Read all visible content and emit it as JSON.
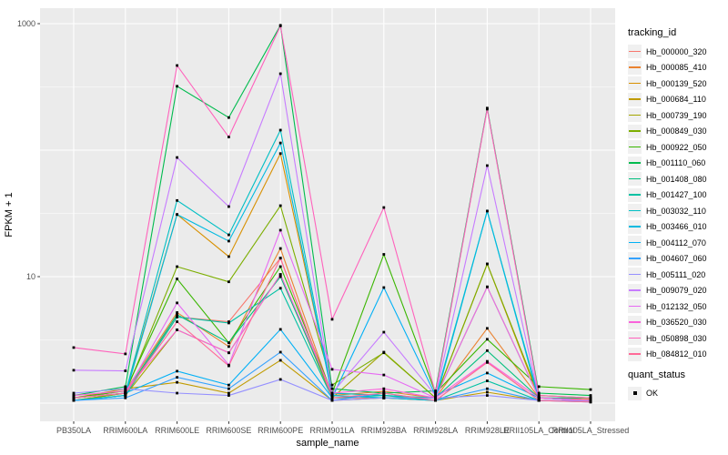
{
  "chart_data": {
    "type": "line",
    "title": "",
    "xlabel": "sample_name",
    "ylabel": "FPKM + 1",
    "y_scale": "log10",
    "grid": true,
    "legend_position": "right",
    "panel_background": "#EBEBEB",
    "gridline_color": "#FFFFFF",
    "point_shape": "filled-square",
    "point_color": "#000000",
    "axis_text_color": "#4D4D4D",
    "tick_color": "#333333",
    "ylim": [
      0.72,
      1400
    ],
    "y_tick_labels": [
      {
        "value": 1000,
        "label": "1000"
      },
      {
        "value": 10,
        "label": "10"
      }
    ],
    "y_major_gridlines": [
      1,
      10,
      100,
      1000
    ],
    "y_minor_gridlines": [
      3.162,
      31.62,
      316.2
    ],
    "categories": [
      "PB350LA",
      "RRIM600LA",
      "RRIM600LE",
      "RRIM600SE",
      "RRIM600PE",
      "RRIM901LA",
      "RRIM928BA",
      "RRIM928LA",
      "RRIM928LE",
      "RRII105LA_Control",
      "RRII105LA_Stressed"
    ],
    "legend": {
      "tracking_title": "tracking_id",
      "quant_title": "quant_status",
      "quant_status_label": "OK"
    },
    "series": [
      {
        "name": "Hb_000000_320",
        "color": "#F8766D",
        "values": [
          1.1,
          1.2,
          4.8,
          4.4,
          14.0,
          1.1,
          1.1,
          1.05,
          2.1,
          1.05,
          1.05
        ]
      },
      {
        "name": "Hb_000085_410",
        "color": "#EA8331",
        "values": [
          1.1,
          1.25,
          5.2,
          2.8,
          16.7,
          1.15,
          1.24,
          1.1,
          3.9,
          1.1,
          1.08
        ]
      },
      {
        "name": "Hb_000139_520",
        "color": "#D89000",
        "values": [
          1.05,
          1.2,
          31.0,
          14.4,
          94.0,
          1.2,
          1.15,
          1.1,
          12.6,
          1.1,
          1.05
        ]
      },
      {
        "name": "Hb_000684_110",
        "color": "#C09B00",
        "values": [
          1.1,
          1.3,
          1.46,
          1.2,
          2.18,
          1.05,
          1.1,
          1.05,
          1.22,
          1.05,
          1.05
        ]
      },
      {
        "name": "Hb_000739_190",
        "color": "#A3A500",
        "values": [
          1.05,
          1.15,
          3.8,
          2.5,
          10.4,
          1.1,
          2.53,
          1.1,
          8.3,
          1.1,
          1.05
        ]
      },
      {
        "name": "Hb_000849_030",
        "color": "#7CAE00",
        "values": [
          1.05,
          1.2,
          12.0,
          9.1,
          36.4,
          1.39,
          2.5,
          1.1,
          12.6,
          1.15,
          1.1
        ]
      },
      {
        "name": "Hb_000922_050",
        "color": "#39B600",
        "values": [
          1.1,
          1.25,
          9.6,
          3.0,
          12.0,
          1.2,
          15.0,
          1.2,
          3.2,
          1.35,
          1.28
        ]
      },
      {
        "name": "Hb_001110_060",
        "color": "#00BB4E",
        "values": [
          1.15,
          1.35,
          320,
          181,
          970,
          1.3,
          1.2,
          1.25,
          215,
          1.2,
          1.15
        ]
      },
      {
        "name": "Hb_001408_080",
        "color": "#00BF7D",
        "values": [
          1.1,
          1.2,
          5.0,
          3.0,
          10.0,
          1.15,
          1.1,
          1.1,
          2.6,
          1.1,
          1.1
        ]
      },
      {
        "name": "Hb_001427_100",
        "color": "#00C1A3",
        "values": [
          1.05,
          1.15,
          4.8,
          4.3,
          8.1,
          1.1,
          1.15,
          1.05,
          1.5,
          1.05,
          1.05
        ]
      },
      {
        "name": "Hb_003032_110",
        "color": "#00BFC4",
        "values": [
          1.1,
          1.2,
          40.0,
          21.4,
          144,
          1.2,
          1.15,
          1.1,
          33.0,
          1.1,
          1.05
        ]
      },
      {
        "name": "Hb_003466_010",
        "color": "#00BAE0",
        "values": [
          1.05,
          1.15,
          31.0,
          19.1,
          114,
          1.15,
          1.1,
          1.05,
          33.0,
          1.05,
          1.05
        ]
      },
      {
        "name": "Hb_004112_070",
        "color": "#00B0F6",
        "values": [
          1.1,
          1.2,
          1.79,
          1.39,
          3.83,
          1.1,
          8.2,
          1.15,
          1.73,
          1.1,
          1.05
        ]
      },
      {
        "name": "Hb_004607_060",
        "color": "#35A2FF",
        "values": [
          1.05,
          1.1,
          1.6,
          1.3,
          2.53,
          1.05,
          1.2,
          1.05,
          1.3,
          1.05,
          1.02
        ]
      },
      {
        "name": "Hb_005111_020",
        "color": "#9590FF",
        "values": [
          1.2,
          1.3,
          1.2,
          1.15,
          1.54,
          1.05,
          1.1,
          1.1,
          1.15,
          1.05,
          1.05
        ]
      },
      {
        "name": "Hb_009079_020",
        "color": "#C77CFF",
        "values": [
          1.82,
          1.8,
          87.5,
          35.8,
          402,
          1.2,
          3.64,
          1.15,
          75.5,
          1.1,
          1.05
        ]
      },
      {
        "name": "Hb_012132_050",
        "color": "#E76BF3",
        "values": [
          1.1,
          1.2,
          6.2,
          2.0,
          23.3,
          1.85,
          1.67,
          1.1,
          8.3,
          1.1,
          1.05
        ]
      },
      {
        "name": "Hb_036520_030",
        "color": "#FA62DB",
        "values": [
          1.15,
          1.25,
          3.8,
          2.5,
          10.4,
          1.2,
          1.3,
          1.1,
          2.14,
          1.1,
          1.05
        ]
      },
      {
        "name": "Hb_050898_030",
        "color": "#FF62BC",
        "values": [
          2.75,
          2.45,
          467,
          127,
          960,
          4.6,
          35.2,
          1.2,
          211,
          1.15,
          1.1
        ]
      },
      {
        "name": "Hb_084812_010",
        "color": "#FF6A98",
        "values": [
          1.1,
          1.2,
          4.4,
          1.97,
          14.0,
          1.1,
          1.2,
          1.05,
          2.1,
          1.05,
          1.02
        ]
      }
    ]
  }
}
